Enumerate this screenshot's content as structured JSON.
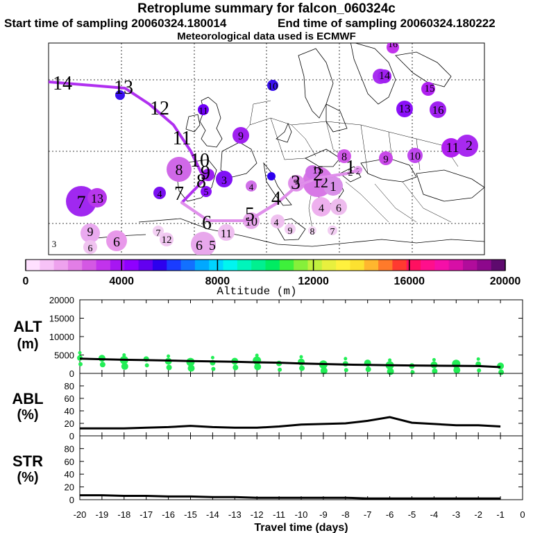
{
  "header": {
    "title": "Retroplume summary for falcon_060324c",
    "start_label": "Start time of sampling 20060324.180014",
    "end_label": "End time of sampling 20060324.180222",
    "met_label": "Meteorological data used is ECMWF"
  },
  "colorbar": {
    "label": "Altitude (m)",
    "ticks": [
      "0",
      "4000",
      "8000",
      "12000",
      "16000",
      "20000"
    ],
    "colors": [
      "#ffe0ff",
      "#f7c2f7",
      "#eea2ee",
      "#e27ee6",
      "#d458e4",
      "#c233ec",
      "#a716f2",
      "#8f00ff",
      "#6300f0",
      "#2d00ee",
      "#1a3cff",
      "#1270ff",
      "#00a8ff",
      "#00d4ff",
      "#00f5f0",
      "#00f5bb",
      "#00f090",
      "#00ec62",
      "#3ef03b",
      "#86f03a",
      "#c2f03e",
      "#e8f03e",
      "#fff13e",
      "#fce130",
      "#ffb62e",
      "#ff7a2a",
      "#ff3a30",
      "#ff1060",
      "#ff0f8c",
      "#f50fa8",
      "#d70fa6",
      "#b10c9b",
      "#8d088c",
      "#5e0a6e"
    ]
  },
  "map": {
    "trajectory_labels": [
      "14",
      "13",
      "12",
      "11",
      "10",
      "9",
      "8",
      "7",
      "6",
      "5",
      "4",
      "3",
      "2",
      "1"
    ],
    "numbers": [
      "14",
      "13",
      "12",
      "12",
      "11",
      "10",
      "9",
      "8",
      "8",
      "7",
      "7",
      "6",
      "6",
      "5",
      "5",
      "5",
      "4",
      "4",
      "4",
      "4",
      "3",
      "3",
      "3",
      "2",
      "1",
      "1",
      "9",
      "13",
      "12",
      "13",
      "10",
      "9",
      "6",
      "15",
      "16",
      "14",
      "16",
      "13",
      "15",
      "12",
      "8",
      "9",
      "10",
      "11",
      "9",
      "8",
      "7",
      "6",
      "16",
      "15"
    ]
  },
  "chart_data": [
    {
      "type": "line",
      "title": "ALT",
      "ylabel": "ALT (m)",
      "x": [
        -20,
        -19,
        -18,
        -17,
        -16,
        -15,
        -14,
        -13,
        -12,
        -11,
        -10,
        -9,
        -8,
        -7,
        -6,
        -5,
        -4,
        -3,
        -2,
        -1
      ],
      "ylim": [
        0,
        20000
      ],
      "yticks": [
        "0",
        "5000",
        "10000",
        "15000",
        "20000"
      ],
      "series": [
        {
          "name": "mean altitude",
          "values": [
            4000,
            3850,
            3700,
            3600,
            3500,
            3350,
            3250,
            3150,
            3000,
            2900,
            2700,
            2550,
            2400,
            2300,
            2200,
            2150,
            2100,
            2050,
            2000,
            1700
          ]
        },
        {
          "name": "cluster altitudes",
          "values": [
            4200,
            4100,
            3600,
            3900,
            3300,
            3100,
            2900,
            3300,
            3500,
            2700,
            3100,
            2400,
            2600,
            2800,
            2200,
            2000,
            2300,
            2600,
            2500,
            2000
          ]
        }
      ]
    },
    {
      "type": "line",
      "title": "ABL",
      "ylabel": "ABL (%)",
      "x": [
        -20,
        -19,
        -18,
        -17,
        -16,
        -15,
        -14,
        -13,
        -12,
        -11,
        -10,
        -9,
        -8,
        -7,
        -6,
        -5,
        -4,
        -3,
        -2,
        -1
      ],
      "ylim": [
        0,
        100
      ],
      "yticks": [
        "0",
        "20",
        "40",
        "60",
        "80"
      ],
      "series": [
        {
          "name": "ABL fraction",
          "values": [
            12,
            12,
            12,
            13,
            14,
            16,
            14,
            13,
            13,
            15,
            18,
            19,
            20,
            24,
            30,
            21,
            19,
            17,
            17,
            15
          ]
        }
      ]
    },
    {
      "type": "line",
      "title": "STR",
      "ylabel": "STR (%)",
      "x": [
        -20,
        -19,
        -18,
        -17,
        -16,
        -15,
        -14,
        -13,
        -12,
        -11,
        -10,
        -9,
        -8,
        -7,
        -6,
        -5,
        -4,
        -3,
        -2,
        -1
      ],
      "ylim": [
        0,
        100
      ],
      "yticks": [
        "0",
        "20",
        "40",
        "60",
        "80"
      ],
      "xlabel": "Travel time (days)",
      "xticks": [
        "-20",
        "-19",
        "-18",
        "-17",
        "-16",
        "-15",
        "-14",
        "-13",
        "-12",
        "-11",
        "-10",
        "-9",
        "-8",
        "-7",
        "-6",
        "-5",
        "-4",
        "-3",
        "-2",
        "-1",
        "0"
      ],
      "series": [
        {
          "name": "stratospheric fraction",
          "values": [
            7,
            7,
            6,
            6,
            5,
            5,
            4,
            4,
            3,
            3,
            3,
            3,
            3,
            2,
            2,
            2,
            2,
            2,
            2,
            2
          ]
        }
      ]
    }
  ]
}
